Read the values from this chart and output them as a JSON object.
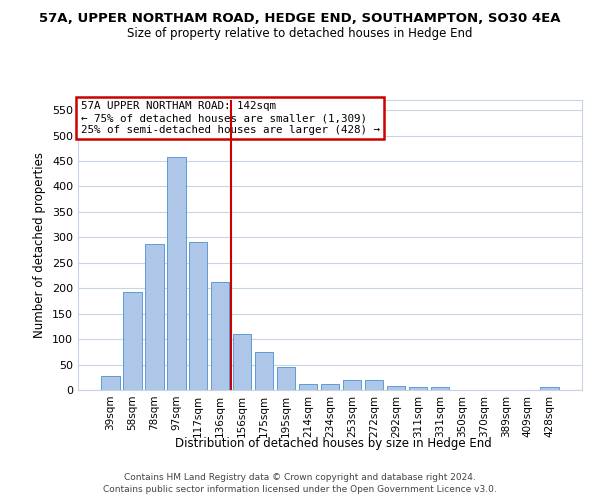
{
  "title1": "57A, UPPER NORTHAM ROAD, HEDGE END, SOUTHAMPTON, SO30 4EA",
  "title2": "Size of property relative to detached houses in Hedge End",
  "xlabel": "Distribution of detached houses by size in Hedge End",
  "ylabel": "Number of detached properties",
  "categories": [
    "39sqm",
    "58sqm",
    "78sqm",
    "97sqm",
    "117sqm",
    "136sqm",
    "156sqm",
    "175sqm",
    "195sqm",
    "214sqm",
    "234sqm",
    "253sqm",
    "272sqm",
    "292sqm",
    "311sqm",
    "331sqm",
    "350sqm",
    "370sqm",
    "389sqm",
    "409sqm",
    "428sqm"
  ],
  "values": [
    28,
    192,
    286,
    458,
    290,
    213,
    110,
    74,
    46,
    12,
    12,
    20,
    20,
    7,
    5,
    5,
    0,
    0,
    0,
    0,
    5
  ],
  "bar_color": "#aec6e8",
  "bar_edge_color": "#5b9bd5",
  "vline_x_index": 5.5,
  "vline_color": "#cc0000",
  "annotation_text": "57A UPPER NORTHAM ROAD: 142sqm\n← 75% of detached houses are smaller (1,309)\n25% of semi-detached houses are larger (428) →",
  "annotation_box_color": "#ffffff",
  "annotation_box_edge": "#cc0000",
  "ylim": [
    0,
    570
  ],
  "yticks": [
    0,
    50,
    100,
    150,
    200,
    250,
    300,
    350,
    400,
    450,
    500,
    550
  ],
  "footer1": "Contains HM Land Registry data © Crown copyright and database right 2024.",
  "footer2": "Contains public sector information licensed under the Open Government Licence v3.0.",
  "bg_color": "#ffffff",
  "grid_color": "#c8d4e3"
}
